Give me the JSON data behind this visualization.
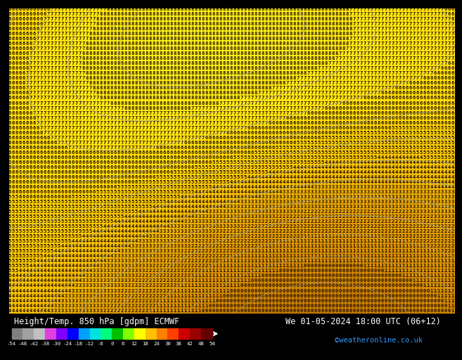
{
  "title_left": "Height/Temp. 850 hPa [gdpm] ECMWF",
  "title_right": "We 01-05-2024 18:00 UTC (06+12)",
  "credit": "©weatheronline.co.uk",
  "colorbar_labels": [
    "-54",
    "-48",
    "-42",
    "-38",
    "-30",
    "-24",
    "-18",
    "-12",
    "-6",
    "0",
    "6",
    "12",
    "18",
    "24",
    "30",
    "38",
    "42",
    "48",
    "54"
  ],
  "colorbar_colors": [
    "#808080",
    "#a0a0a0",
    "#c0c0c0",
    "#e040e0",
    "#8000ff",
    "#0000ff",
    "#00a0ff",
    "#00e0e0",
    "#00ff80",
    "#00c000",
    "#80ff00",
    "#ffff00",
    "#ffc000",
    "#ff8000",
    "#ff4000",
    "#cc0000",
    "#990000",
    "#660000"
  ],
  "bg_color": "#000000",
  "map_bg": "#f0a800",
  "digit_color": "#1a0a00",
  "contour_color": "#a0a0a0"
}
